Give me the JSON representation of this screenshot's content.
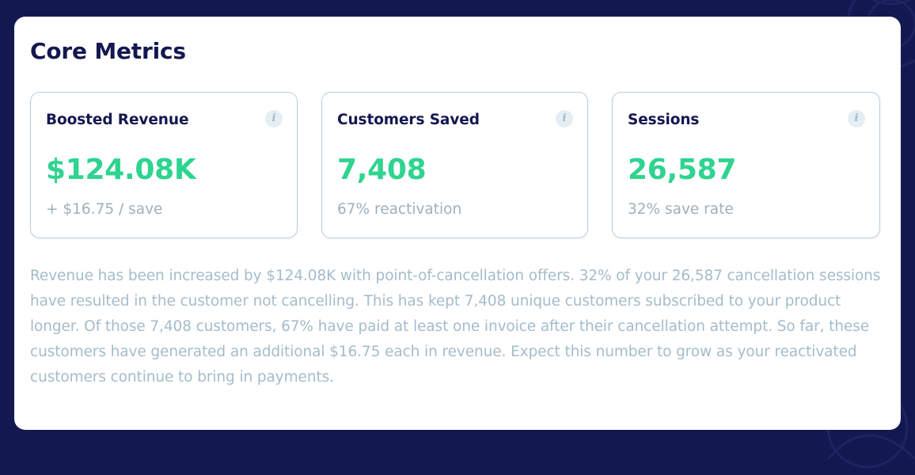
{
  "panel": {
    "title": "Core Metrics"
  },
  "cards": [
    {
      "title": "Boosted Revenue",
      "value": "$124.08K",
      "sub": "+ $16.75 / save",
      "info_icon": "i"
    },
    {
      "title": "Customers Saved",
      "value": "7,408",
      "sub": "67% reactivation",
      "info_icon": "i"
    },
    {
      "title": "Sessions",
      "value": "26,587",
      "sub": "32% save rate",
      "info_icon": "i"
    }
  ],
  "summary": {
    "text": "Revenue has been increased by $124.08K with point-of-cancellation offers. 32% of your 26,587 cancellation sessions have resulted in the customer not cancelling. This has kept 7,408 unique customers subscribed to your product longer. Of those 7,408 customers, 67% have paid at least one invoice after their cancellation attempt. So far, these customers have generated an additional $16.75 each in revenue. Expect this number to grow as your reactivated customers continue to bring in payments."
  },
  "colors": {
    "background": "#141850",
    "panel": "#ffffff",
    "title": "#141850",
    "accent_value": "#2ed48f",
    "muted_text": "#9eb0bc",
    "card_border": "#b8d0dc"
  },
  "icons": {
    "info": "info-icon"
  }
}
